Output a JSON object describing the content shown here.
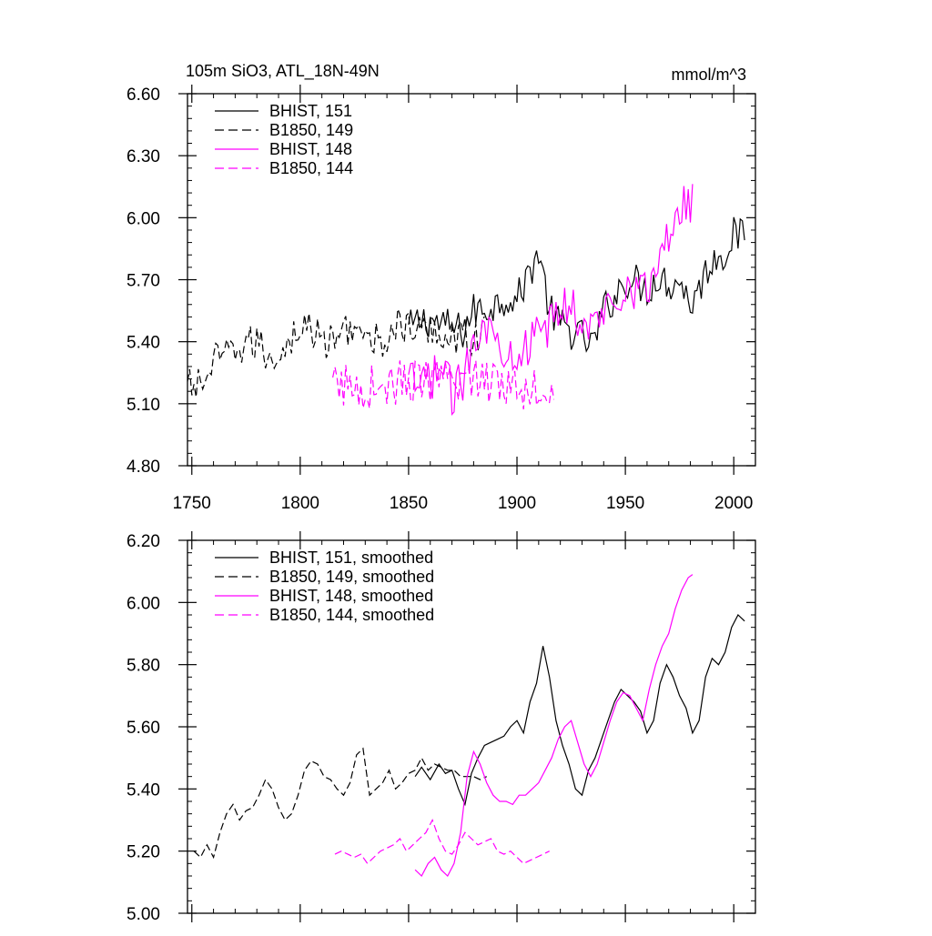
{
  "figure": {
    "title_left": "105m SiO3, ATL_18N-49N",
    "title_right": "mmol/m^3"
  },
  "chart_data": [
    {
      "type": "line",
      "id": "top",
      "title": "105m SiO3, ATL_18N-49N",
      "units": "mmol/m^3",
      "xlim": [
        1748,
        2010
      ],
      "ylim": [
        4.8,
        6.6
      ],
      "xticks": [
        1750,
        1800,
        1850,
        1900,
        1950,
        2000
      ],
      "xtick_labels": [
        "1750",
        "1800",
        "1850",
        "1900",
        "1950",
        "2000"
      ],
      "yticks": [
        4.8,
        5.1,
        5.4,
        5.7,
        6.0,
        6.3,
        6.6
      ],
      "ytick_labels": [
        "4.80",
        "5.10",
        "5.40",
        "5.70",
        "6.00",
        "6.30",
        "6.60"
      ],
      "legend_position": "top-left",
      "series": [
        {
          "name": "BHIST, 151",
          "color": "#000000",
          "dash": "solid",
          "start": 1850,
          "end": 2005,
          "x": [
            1850,
            1855,
            1860,
            1865,
            1870,
            1875,
            1880,
            1885,
            1890,
            1895,
            1900,
            1905,
            1910,
            1915,
            1920,
            1925,
            1930,
            1935,
            1940,
            1945,
            1950,
            1955,
            1960,
            1965,
            1970,
            1975,
            1980,
            1985,
            1990,
            1995,
            2000,
            2005
          ],
          "values": [
            5.46,
            5.5,
            5.51,
            5.48,
            5.47,
            5.45,
            5.55,
            5.56,
            5.58,
            5.62,
            5.6,
            5.72,
            5.84,
            5.55,
            5.48,
            5.45,
            5.42,
            5.38,
            5.55,
            5.62,
            5.7,
            5.69,
            5.65,
            5.72,
            5.68,
            5.7,
            5.58,
            5.68,
            5.8,
            5.82,
            5.92,
            5.9
          ]
        },
        {
          "name": "B1850, 149",
          "color": "#000000",
          "dash": "dashed",
          "start": 1748,
          "end": 1885,
          "x": [
            1748,
            1755,
            1760,
            1765,
            1770,
            1775,
            1780,
            1785,
            1790,
            1795,
            1800,
            1805,
            1810,
            1815,
            1820,
            1825,
            1830,
            1835,
            1840,
            1845,
            1850,
            1855,
            1860,
            1865,
            1870,
            1875,
            1880,
            1885
          ],
          "values": [
            5.18,
            5.2,
            5.3,
            5.32,
            5.36,
            5.38,
            5.4,
            5.32,
            5.35,
            5.4,
            5.48,
            5.46,
            5.4,
            5.4,
            5.45,
            5.5,
            5.38,
            5.4,
            5.42,
            5.48,
            5.46,
            5.44,
            5.46,
            5.44,
            5.42,
            5.44,
            5.42,
            5.44
          ]
        },
        {
          "name": "BHIST, 148",
          "color": "#ff00ff",
          "dash": "solid",
          "start": 1850,
          "end": 1981,
          "x": [
            1850,
            1855,
            1860,
            1865,
            1870,
            1875,
            1880,
            1885,
            1890,
            1895,
            1900,
            1905,
            1910,
            1915,
            1920,
            1925,
            1930,
            1935,
            1940,
            1945,
            1950,
            1955,
            1960,
            1965,
            1970,
            1975,
            1980
          ],
          "values": [
            5.2,
            5.18,
            5.22,
            5.28,
            5.15,
            5.2,
            5.45,
            5.5,
            5.4,
            5.38,
            5.36,
            5.38,
            5.42,
            5.48,
            5.55,
            5.6,
            5.48,
            5.46,
            5.55,
            5.62,
            5.68,
            5.66,
            5.64,
            5.78,
            5.9,
            6.05,
            6.08
          ]
        },
        {
          "name": "B1850, 144",
          "color": "#ff00ff",
          "dash": "dashed",
          "start": 1815,
          "end": 1917,
          "x": [
            1815,
            1820,
            1825,
            1830,
            1835,
            1840,
            1845,
            1850,
            1855,
            1860,
            1865,
            1870,
            1875,
            1880,
            1885,
            1890,
            1895,
            1900,
            1905,
            1910,
            1915
          ],
          "values": [
            5.18,
            5.19,
            5.18,
            5.17,
            5.2,
            5.18,
            5.2,
            5.22,
            5.19,
            5.21,
            5.2,
            5.18,
            5.22,
            5.24,
            5.2,
            5.22,
            5.21,
            5.18,
            5.18,
            5.19,
            5.19
          ]
        }
      ]
    },
    {
      "type": "line",
      "id": "bottom",
      "xlim": [
        1748,
        2010
      ],
      "ylim": [
        5.0,
        6.2
      ],
      "xticks": [
        1750,
        1800,
        1850,
        1900,
        1950,
        2000
      ],
      "yticks": [
        5.0,
        5.2,
        5.4,
        5.6,
        5.8,
        6.0,
        6.2
      ],
      "ytick_labels": [
        "5.00",
        "5.20",
        "5.40",
        "5.60",
        "5.80",
        "6.00",
        "6.20"
      ],
      "legend_position": "top-left",
      "series": [
        {
          "name": "BHIST, 151, smoothed",
          "color": "#000000",
          "dash": "solid",
          "x": [
            1853,
            1856,
            1860,
            1864,
            1867,
            1870,
            1873,
            1876,
            1879,
            1882,
            1885,
            1888,
            1891,
            1894,
            1897,
            1900,
            1903,
            1906,
            1909,
            1912,
            1915,
            1918,
            1921,
            1924,
            1927,
            1930,
            1933,
            1936,
            1939,
            1942,
            1945,
            1948,
            1951,
            1954,
            1957,
            1960,
            1963,
            1966,
            1969,
            1972,
            1975,
            1978,
            1981,
            1984,
            1987,
            1990,
            1993,
            1996,
            1999,
            2002,
            2005
          ],
          "values": [
            5.44,
            5.47,
            5.43,
            5.48,
            5.45,
            5.46,
            5.4,
            5.35,
            5.45,
            5.5,
            5.54,
            5.55,
            5.56,
            5.57,
            5.6,
            5.62,
            5.58,
            5.68,
            5.74,
            5.86,
            5.76,
            5.62,
            5.54,
            5.48,
            5.4,
            5.38,
            5.46,
            5.5,
            5.56,
            5.62,
            5.68,
            5.72,
            5.7,
            5.68,
            5.65,
            5.58,
            5.62,
            5.74,
            5.8,
            5.76,
            5.7,
            5.66,
            5.58,
            5.62,
            5.76,
            5.82,
            5.8,
            5.84,
            5.92,
            5.96,
            5.94
          ]
        },
        {
          "name": "B1850, 149, smoothed",
          "color": "#000000",
          "dash": "dashed",
          "x": [
            1751,
            1754,
            1757,
            1760,
            1763,
            1766,
            1769,
            1772,
            1775,
            1778,
            1781,
            1784,
            1787,
            1790,
            1793,
            1796,
            1799,
            1802,
            1805,
            1808,
            1811,
            1814,
            1817,
            1820,
            1823,
            1826,
            1829,
            1832,
            1835,
            1838,
            1841,
            1844,
            1847,
            1850,
            1853,
            1856,
            1859,
            1862,
            1865,
            1868,
            1871,
            1874,
            1877,
            1880,
            1883,
            1886
          ],
          "values": [
            5.2,
            5.18,
            5.22,
            5.18,
            5.26,
            5.32,
            5.35,
            5.3,
            5.33,
            5.34,
            5.38,
            5.43,
            5.4,
            5.34,
            5.3,
            5.32,
            5.38,
            5.46,
            5.49,
            5.48,
            5.44,
            5.43,
            5.4,
            5.38,
            5.42,
            5.51,
            5.53,
            5.38,
            5.4,
            5.42,
            5.46,
            5.4,
            5.42,
            5.45,
            5.46,
            5.5,
            5.46,
            5.48,
            5.47,
            5.46,
            5.46,
            5.44,
            5.44,
            5.44,
            5.43,
            5.44
          ]
        },
        {
          "name": "BHIST, 148, smoothed",
          "color": "#ff00ff",
          "dash": "solid",
          "x": [
            1853,
            1856,
            1859,
            1862,
            1865,
            1868,
            1871,
            1874,
            1877,
            1880,
            1883,
            1886,
            1889,
            1892,
            1895,
            1898,
            1901,
            1904,
            1907,
            1910,
            1913,
            1916,
            1919,
            1922,
            1925,
            1928,
            1931,
            1934,
            1937,
            1940,
            1943,
            1946,
            1949,
            1952,
            1955,
            1958,
            1961,
            1964,
            1967,
            1970,
            1973,
            1976,
            1979,
            1981
          ],
          "values": [
            5.14,
            5.12,
            5.16,
            5.18,
            5.14,
            5.12,
            5.16,
            5.26,
            5.44,
            5.52,
            5.48,
            5.42,
            5.38,
            5.36,
            5.36,
            5.35,
            5.38,
            5.38,
            5.4,
            5.42,
            5.46,
            5.5,
            5.56,
            5.6,
            5.62,
            5.55,
            5.48,
            5.44,
            5.48,
            5.55,
            5.62,
            5.68,
            5.71,
            5.7,
            5.66,
            5.62,
            5.72,
            5.8,
            5.86,
            5.9,
            5.98,
            6.04,
            6.08,
            6.09
          ]
        },
        {
          "name": "B1850, 144, smoothed",
          "color": "#ff00ff",
          "dash": "dashed",
          "x": [
            1816,
            1819,
            1822,
            1825,
            1828,
            1831,
            1834,
            1837,
            1840,
            1843,
            1846,
            1849,
            1852,
            1855,
            1858,
            1861,
            1864,
            1867,
            1870,
            1873,
            1876,
            1879,
            1882,
            1885,
            1888,
            1891,
            1894,
            1897,
            1900,
            1903,
            1906,
            1909,
            1912,
            1915
          ],
          "values": [
            5.19,
            5.2,
            5.19,
            5.18,
            5.19,
            5.16,
            5.18,
            5.2,
            5.21,
            5.22,
            5.24,
            5.2,
            5.22,
            5.24,
            5.26,
            5.3,
            5.24,
            5.2,
            5.19,
            5.22,
            5.26,
            5.24,
            5.22,
            5.23,
            5.24,
            5.2,
            5.19,
            5.2,
            5.18,
            5.16,
            5.17,
            5.18,
            5.19,
            5.2
          ]
        }
      ]
    }
  ]
}
